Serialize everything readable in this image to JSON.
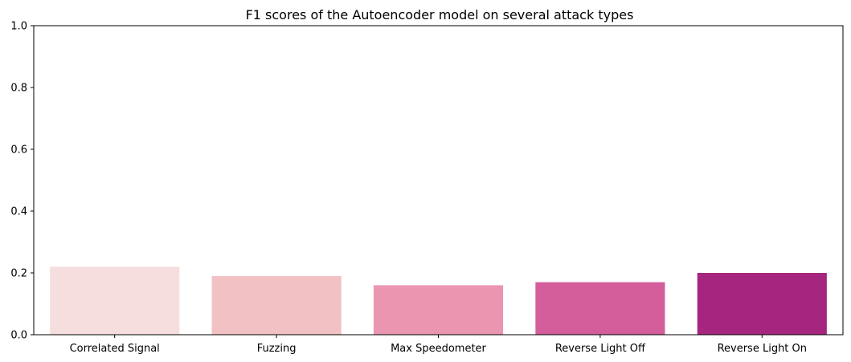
{
  "chart_data": {
    "type": "bar",
    "title": "F1 scores of the Autoencoder model on several attack types",
    "xlabel": "",
    "ylabel": "",
    "categories": [
      "Correlated Signal",
      "Fuzzing",
      "Max Speedometer",
      "Reverse Light Off",
      "Reverse Light On"
    ],
    "values": [
      0.22,
      0.19,
      0.16,
      0.17,
      0.2
    ],
    "colors": [
      "#f7dede",
      "#f2c1c4",
      "#eb96b1",
      "#d35e9b",
      "#a6257f"
    ],
    "ylim": [
      0,
      1.0
    ],
    "yticks": [
      "0.0",
      "0.2",
      "0.4",
      "0.6",
      "0.8",
      "1.0"
    ],
    "grid": false,
    "legend": "none"
  }
}
